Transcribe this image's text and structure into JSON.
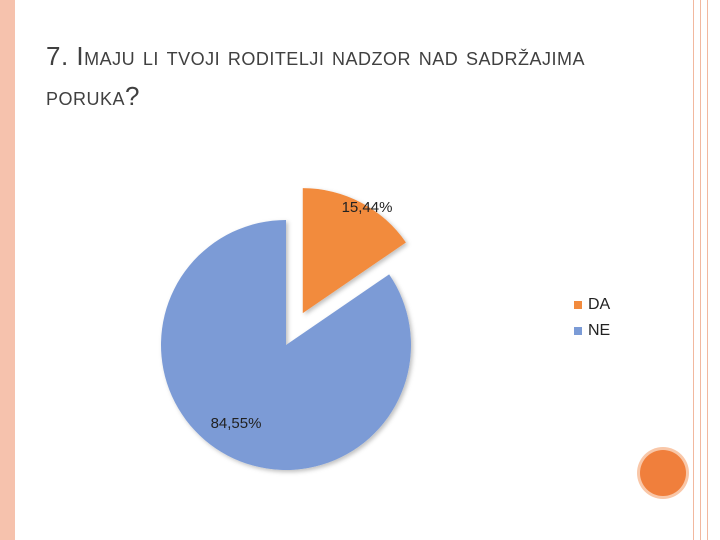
{
  "title": "7. Imaju li tvoji roditelji nadzor nad sadržajima poruka?",
  "chart_data": {
    "type": "pie",
    "exploded": true,
    "legend_position": "right",
    "slices": [
      {
        "category": "DA",
        "value": 15.44,
        "label": "15,44%",
        "color": "#f28b3e"
      },
      {
        "category": "NE",
        "value": 84.55,
        "label": "84,55%",
        "color": "#7b9bd6"
      }
    ]
  }
}
